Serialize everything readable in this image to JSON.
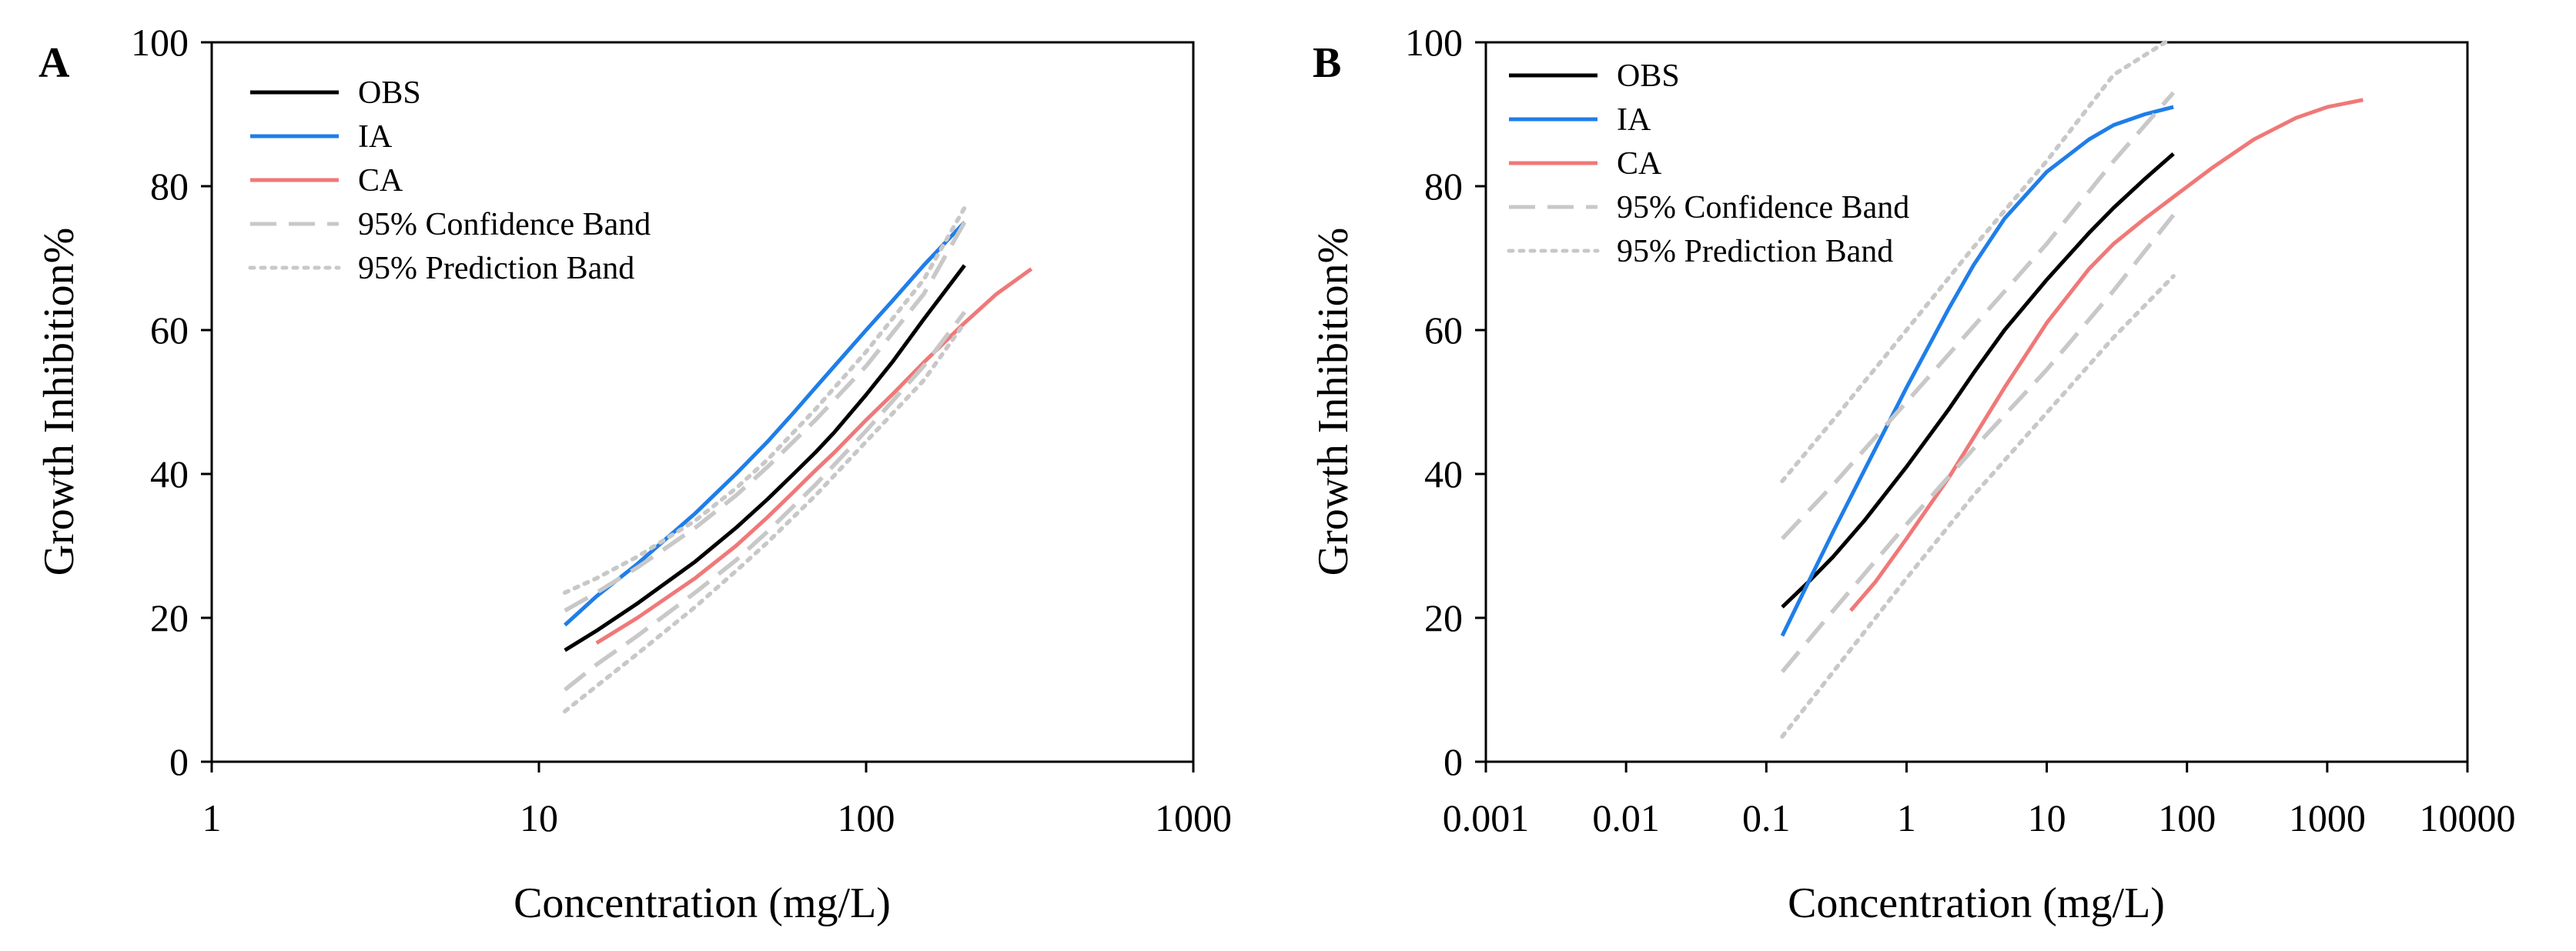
{
  "chart_data": [
    {
      "type": "line",
      "panel": "A",
      "xscale": "log",
      "xlabel": "Concentration (mg/L)",
      "ylabel": "Growth Inhibition%",
      "xlim": [
        1,
        1000
      ],
      "ylim": [
        0,
        100
      ],
      "xticks": [
        "1",
        "10",
        "100",
        "1000"
      ],
      "yticks": [
        "0",
        "20",
        "40",
        "60",
        "80",
        "100"
      ],
      "legend": [
        "OBS",
        "IA",
        "CA",
        "95% Confidence Band",
        "95% Prediction Band"
      ],
      "legend_position": "top-left",
      "series": [
        {
          "name": "OBS",
          "color": "#000000",
          "style": "solid",
          "x": [
            12,
            15,
            20,
            30,
            40,
            50,
            60,
            70,
            80,
            100,
            120,
            150,
            200
          ],
          "y": [
            15.5,
            18.2,
            22.0,
            27.8,
            32.5,
            36.5,
            40.0,
            43.0,
            45.8,
            51.0,
            55.5,
            61.5,
            69.0
          ]
        },
        {
          "name": "IA",
          "color": "#1f7ee8",
          "style": "solid",
          "x": [
            12,
            15,
            20,
            30,
            40,
            50,
            60,
            70,
            80,
            100,
            120,
            150,
            200
          ],
          "y": [
            19.0,
            23.0,
            27.5,
            34.5,
            40.0,
            44.5,
            48.5,
            52.0,
            55.0,
            60.0,
            64.0,
            69.0,
            75.0
          ]
        },
        {
          "name": "CA",
          "color": "#f07878",
          "style": "solid",
          "x": [
            15,
            20,
            30,
            40,
            50,
            60,
            70,
            80,
            100,
            120,
            150,
            200,
            250,
            320
          ],
          "y": [
            16.5,
            20.0,
            25.5,
            30.0,
            34.0,
            37.5,
            40.5,
            43.0,
            47.5,
            51.0,
            55.5,
            61.0,
            65.0,
            68.5
          ]
        },
        {
          "name": "95% Confidence Band (upper)",
          "color": "#c8c8c8",
          "style": "dashed",
          "x": [
            12,
            15,
            20,
            30,
            40,
            50,
            70,
            100,
            150,
            200
          ],
          "y": [
            21.0,
            23.5,
            27.0,
            32.5,
            37.0,
            41.0,
            47.5,
            55.0,
            65.0,
            75.0
          ]
        },
        {
          "name": "95% Confidence Band (lower)",
          "color": "#c8c8c8",
          "style": "dashed",
          "x": [
            12,
            15,
            20,
            30,
            40,
            50,
            70,
            100,
            150,
            200
          ],
          "y": [
            10.0,
            13.5,
            17.5,
            23.5,
            28.0,
            32.0,
            38.5,
            46.0,
            55.0,
            62.5
          ]
        },
        {
          "name": "95% Prediction Band (upper)",
          "color": "#c8c8c8",
          "style": "dotted",
          "x": [
            12,
            15,
            20,
            30,
            40,
            50,
            70,
            100,
            150,
            200
          ],
          "y": [
            23.5,
            25.5,
            28.5,
            33.5,
            38.0,
            42.0,
            49.0,
            57.0,
            67.0,
            77.0
          ]
        },
        {
          "name": "95% Prediction Band (lower)",
          "color": "#c8c8c8",
          "style": "dotted",
          "x": [
            12,
            15,
            20,
            30,
            40,
            50,
            70,
            100,
            150,
            200
          ],
          "y": [
            7.0,
            10.5,
            15.0,
            21.5,
            26.5,
            30.5,
            37.0,
            44.5,
            53.0,
            61.0
          ]
        }
      ]
    },
    {
      "type": "line",
      "panel": "B",
      "xscale": "log",
      "xlabel": "Concentration (mg/L)",
      "ylabel": "Growth Inhibition%",
      "xlim": [
        0.001,
        10000
      ],
      "ylim": [
        0,
        100
      ],
      "xticks": [
        "0.001",
        "0.01",
        "0.1",
        "1",
        "10",
        "100",
        "1000",
        "10000"
      ],
      "yticks": [
        "0",
        "20",
        "40",
        "60",
        "80",
        "100"
      ],
      "legend": [
        "OBS",
        "IA",
        "CA",
        "95% Confidence Band",
        "95% Prediction Band"
      ],
      "legend_position": "top-left",
      "series": [
        {
          "name": "OBS",
          "color": "#000000",
          "style": "solid",
          "x": [
            0.13,
            0.2,
            0.3,
            0.5,
            1,
            2,
            3,
            5,
            10,
            20,
            30,
            50,
            80
          ],
          "y": [
            21.5,
            25.0,
            28.5,
            33.5,
            41.0,
            49.0,
            54.0,
            60.0,
            67.0,
            73.5,
            77.0,
            81.0,
            84.5
          ]
        },
        {
          "name": "IA",
          "color": "#1f7ee8",
          "style": "solid",
          "x": [
            0.13,
            0.2,
            0.3,
            0.5,
            1,
            2,
            3,
            5,
            10,
            20,
            30,
            50,
            80
          ],
          "y": [
            17.5,
            25.0,
            32.0,
            40.5,
            52.0,
            63.0,
            69.0,
            75.5,
            82.0,
            86.5,
            88.5,
            90.0,
            91.0
          ]
        },
        {
          "name": "CA",
          "color": "#f07878",
          "style": "solid",
          "x": [
            0.4,
            0.6,
            1,
            2,
            3,
            5,
            10,
            20,
            30,
            50,
            80,
            150,
            300,
            600,
            1000,
            1800
          ],
          "y": [
            21.0,
            25.0,
            31.0,
            39.5,
            45.0,
            52.0,
            61.0,
            68.5,
            72.0,
            75.5,
            78.5,
            82.5,
            86.5,
            89.5,
            91.0,
            92.0
          ]
        },
        {
          "name": "95% Confidence Band (upper)",
          "color": "#c8c8c8",
          "style": "dashed",
          "x": [
            0.13,
            0.3,
            1,
            3,
            10,
            30,
            80
          ],
          "y": [
            31.0,
            38.5,
            50.0,
            60.5,
            72.0,
            83.5,
            93.0
          ]
        },
        {
          "name": "95% Confidence Band (lower)",
          "color": "#c8c8c8",
          "style": "dashed",
          "x": [
            0.13,
            0.3,
            1,
            3,
            10,
            30,
            80
          ],
          "y": [
            12.5,
            21.0,
            33.0,
            43.5,
            54.5,
            65.5,
            76.0
          ]
        },
        {
          "name": "95% Prediction Band (upper)",
          "color": "#c8c8c8",
          "style": "dotted",
          "x": [
            0.13,
            0.3,
            1,
            3,
            10,
            30,
            70
          ],
          "y": [
            39.0,
            47.5,
            60.0,
            71.5,
            83.5,
            95.5,
            100.0
          ]
        },
        {
          "name": "95% Prediction Band (lower)",
          "color": "#c8c8c8",
          "style": "dotted",
          "x": [
            0.13,
            0.3,
            1,
            3,
            10,
            30,
            80
          ],
          "y": [
            3.5,
            12.5,
            25.5,
            37.0,
            48.5,
            59.0,
            67.5
          ]
        }
      ]
    }
  ]
}
